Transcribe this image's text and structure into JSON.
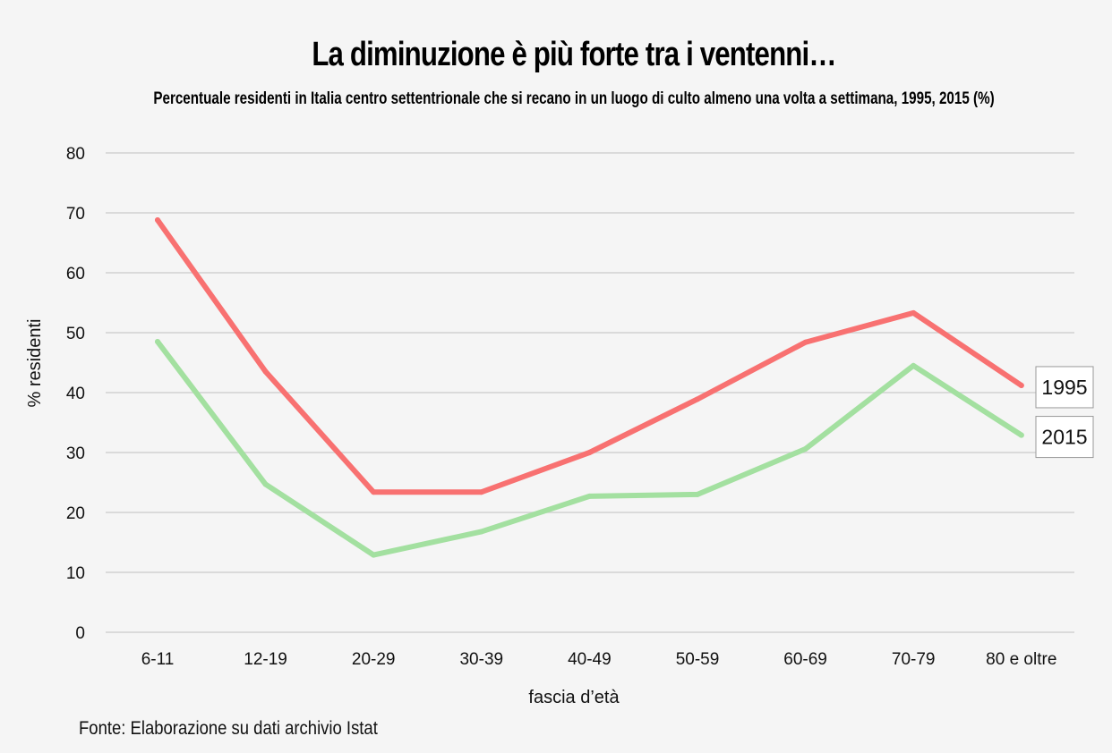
{
  "chart_data": {
    "type": "line",
    "title": "La diminuzione è più forte tra i ventenni…",
    "subtitle": "Percentuale residenti in Italia centro settentrionale che si recano in un luogo di culto almeno una volta a settimana, 1995, 2015 (%)",
    "xlabel": "fascia d’età",
    "ylabel": "% residenti",
    "categories": [
      "6-11",
      "12-19",
      "20-29",
      "30-39",
      "40-49",
      "50-59",
      "60-69",
      "70-79",
      "80 e oltre"
    ],
    "ylim": [
      0,
      80
    ],
    "yticks": [
      0,
      10,
      20,
      30,
      40,
      50,
      60,
      70,
      80
    ],
    "grid": true,
    "legend": "end-of-line labels on the right",
    "series": [
      {
        "name": "1995",
        "color": "#f87171",
        "values": [
          68.8,
          43.5,
          23.4,
          23.4,
          30.0,
          38.9,
          48.4,
          53.3,
          41.2
        ]
      },
      {
        "name": "2015",
        "color": "#a3e0a0",
        "values": [
          48.5,
          24.7,
          12.9,
          16.8,
          22.7,
          23.0,
          30.6,
          44.5,
          32.9
        ]
      }
    ]
  },
  "source": "Fonte: Elaborazione su dati archivio Istat"
}
